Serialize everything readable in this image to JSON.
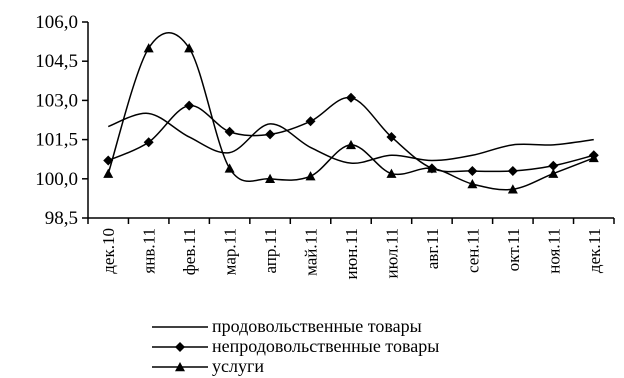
{
  "chart_data": {
    "type": "line",
    "title": "",
    "xlabel": "",
    "ylabel": "",
    "categories": [
      "дек.10",
      "янв.11",
      "фев.11",
      "мар.11",
      "апр.11",
      "май.11",
      "июн.11",
      "июл.11",
      "авг.11",
      "сен.11",
      "окт.11",
      "ноя.11",
      "дек.11"
    ],
    "ylim": [
      98.5,
      106.0
    ],
    "yticks": [
      "106,0",
      "104,5",
      "103,0",
      "101,5",
      "100,0",
      "98,5"
    ],
    "ytick_values": [
      106.0,
      104.5,
      103.0,
      101.5,
      100.0,
      98.5
    ],
    "grid": false,
    "legend_position": "bottom",
    "series": [
      {
        "name": "продовольственные товары",
        "marker": "none",
        "color": "#000000",
        "values": [
          102.0,
          102.5,
          101.6,
          101.0,
          102.1,
          101.2,
          100.6,
          100.9,
          100.7,
          100.9,
          101.3,
          101.3,
          101.5
        ]
      },
      {
        "name": "непродовольственные товары",
        "marker": "diamond",
        "color": "#000000",
        "values": [
          100.7,
          101.4,
          102.8,
          101.8,
          101.7,
          102.2,
          103.1,
          101.6,
          100.4,
          100.3,
          100.3,
          100.5,
          100.9
        ]
      },
      {
        "name": "услуги",
        "marker": "triangle",
        "color": "#000000",
        "values": [
          100.2,
          105.0,
          105.0,
          100.4,
          100.0,
          100.1,
          101.3,
          100.2,
          100.4,
          99.8,
          99.6,
          100.2,
          100.8
        ]
      }
    ]
  }
}
